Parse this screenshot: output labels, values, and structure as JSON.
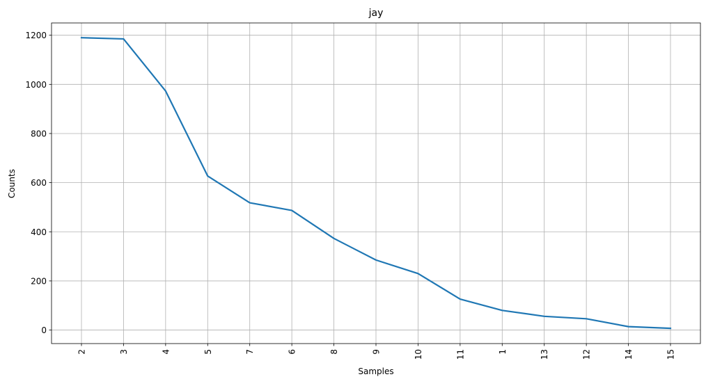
{
  "chart_data": {
    "type": "line",
    "title": "jay",
    "xlabel": "Samples",
    "ylabel": "Counts",
    "categories": [
      "2",
      "3",
      "4",
      "5",
      "7",
      "6",
      "8",
      "9",
      "10",
      "11",
      "1",
      "13",
      "12",
      "14",
      "15"
    ],
    "series": [
      {
        "values": [
          1190,
          1185,
          973,
          627,
          518,
          487,
          373,
          285,
          230,
          126,
          80,
          56,
          46,
          14,
          7
        ]
      }
    ],
    "ylim": [
      -55,
      1250
    ],
    "yticks": [
      0,
      200,
      400,
      600,
      800,
      1000,
      1200
    ],
    "grid": true,
    "line_color": "#1f77b4",
    "grid_color": "#b0b0b0"
  }
}
